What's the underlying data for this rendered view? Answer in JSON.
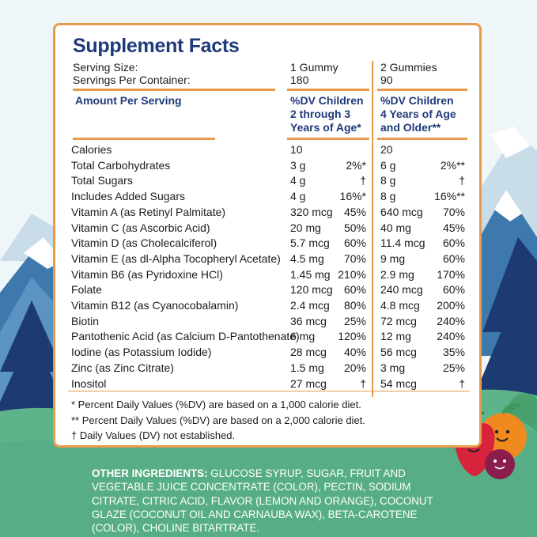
{
  "title": "Supplement Facts",
  "serving_size_label": "Serving Size:",
  "servings_per_container_label": "Servings Per Container:",
  "col1": {
    "serving_size": "1 Gummy",
    "servings": "180",
    "header": [
      "%DV Children",
      "2 through 3",
      "Years of Age*"
    ]
  },
  "col2": {
    "serving_size": "2 Gummies",
    "servings": "90",
    "header": [
      "%DV Children",
      "4 Years of Age",
      "and Older**"
    ]
  },
  "amount_per_serving": "Amount Per Serving",
  "rows": [
    {
      "name": "Calories",
      "a1": "10",
      "p1": "",
      "a2": "20",
      "p2": ""
    },
    {
      "name": "Total Carbohydrates",
      "a1": "3 g",
      "p1": "2%*",
      "a2": "6 g",
      "p2": "2%**"
    },
    {
      "name": "Total Sugars",
      "a1": "4 g",
      "p1": "†",
      "a2": "8 g",
      "p2": "†"
    },
    {
      "name": "Includes Added Sugars",
      "a1": "4 g",
      "p1": "16%*",
      "a2": "8 g",
      "p2": "16%**"
    },
    {
      "name": "Vitamin A (as Retinyl Palmitate)",
      "a1": "320 mcg",
      "p1": "45%",
      "a2": "640 mcg",
      "p2": "70%"
    },
    {
      "name": "Vitamin C (as Ascorbic Acid)",
      "a1": "20 mg",
      "p1": "50%",
      "a2": "40 mg",
      "p2": "45%"
    },
    {
      "name": "Vitamin D (as Cholecalciferol)",
      "a1": "5.7 mcg",
      "p1": "60%",
      "a2": "11.4 mcg",
      "p2": "60%"
    },
    {
      "name": "Vitamin E (as dl-Alpha Tocopheryl Acetate)",
      "a1": "4.5 mg",
      "p1": "70%",
      "a2": "9 mg",
      "p2": "60%"
    },
    {
      "name": "Vitamin B6 (as Pyridoxine HCl)",
      "a1": "1.45 mg",
      "p1": "210%",
      "a2": "2.9 mg",
      "p2": "170%"
    },
    {
      "name": "Folate",
      "a1": "120 mcg",
      "p1": "60%",
      "a2": "240 mcg",
      "p2": "60%"
    },
    {
      "name": "Vitamin B12 (as Cyanocobalamin)",
      "a1": "2.4 mcg",
      "p1": "80%",
      "a2": "4.8 mcg",
      "p2": "200%"
    },
    {
      "name": "Biotin",
      "a1": "36 mcg",
      "p1": "25%",
      "a2": "72 mcg",
      "p2": "240%"
    },
    {
      "name": "Pantothenic Acid (as Calcium D-Pantothenate)",
      "a1": "6 mg",
      "p1": "120%",
      "a2": "12 mg",
      "p2": "240%"
    },
    {
      "name": "Iodine (as Potassium Iodide)",
      "a1": "28 mcg",
      "p1": "40%",
      "a2": "56 mcg",
      "p2": "35%"
    },
    {
      "name": "Zinc (as Zinc Citrate)",
      "a1": "1.5 mg",
      "p1": "20%",
      "a2": "3 mg",
      "p2": "25%"
    },
    {
      "name": "Inositol",
      "a1": "27 mcg",
      "p1": "†",
      "a2": "54 mcg",
      "p2": "†"
    }
  ],
  "footnotes": [
    "* Percent Daily Values (%DV) are based on a 1,000 calorie diet.",
    "** Percent Daily Values (%DV) are based on a 2,000 calorie diet.",
    "† Daily Values (DV) not established."
  ],
  "ingredients_label": "OTHER INGREDIENTS:",
  "ingredients_text": " GLUCOSE SYRUP, SUGAR, FRUIT AND VEGETABLE JUICE CONCENTRATE (COLOR), PECTIN, SODIUM CITRATE, CITRIC ACID, FLAVOR (LEMON AND ORANGE), COCONUT GLAZE (COCONUT OIL AND CARNAUBA WAX), BETA-CAROTENE (COLOR), CHOLINE BITARTRATE.",
  "colors": {
    "navy": "#1f3a7a",
    "orange": "#e79a4c",
    "green": "#5db38a",
    "sky": "#eef6fa"
  },
  "illustration": {
    "scene": "mountain-icon",
    "trees": "pine-tree-icon",
    "characters": "fruit-mascot-icon"
  }
}
